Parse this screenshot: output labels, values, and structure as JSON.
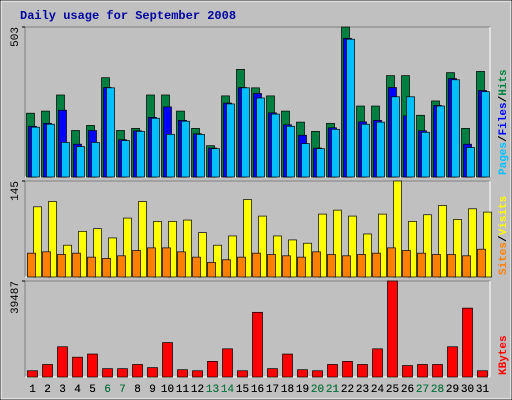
{
  "chart_data": [
    {
      "type": "bar",
      "title": "Daily usage for September 2008",
      "categories": [
        "1",
        "2",
        "3",
        "4",
        "5",
        "6",
        "7",
        "8",
        "9",
        "10",
        "11",
        "12",
        "13",
        "14",
        "15",
        "16",
        "17",
        "18",
        "19",
        "20",
        "21",
        "22",
        "23",
        "24",
        "25",
        "26",
        "27",
        "28",
        "29",
        "30",
        "31"
      ],
      "ylim": [
        0,
        503
      ],
      "yticks": [
        503
      ],
      "legend_separator": "/",
      "series": [
        {
          "name": "Hits",
          "color": "#008040",
          "values": [
            214,
            221,
            275,
            156,
            173,
            333,
            156,
            163,
            275,
            275,
            221,
            163,
            105,
            272,
            361,
            299,
            272,
            221,
            184,
            153,
            180,
            503,
            238,
            238,
            340,
            340,
            207,
            255,
            350,
            163,
            354
          ]
        },
        {
          "name": "Files",
          "color": "#0000ff",
          "values": [
            170,
            180,
            224,
            110,
            156,
            300,
            125,
            155,
            200,
            235,
            190,
            145,
            97,
            248,
            300,
            280,
            215,
            175,
            140,
            97,
            165,
            465,
            185,
            190,
            300,
            205,
            155,
            240,
            330,
            110,
            290
          ]
        },
        {
          "name": "Pages",
          "color": "#00c0ff",
          "values": [
            167,
            177,
            116,
            102,
            116,
            299,
            122,
            153,
            197,
            143,
            187,
            143,
            95,
            245,
            299,
            265,
            211,
            170,
            112,
            95,
            160,
            462,
            177,
            184,
            269,
            269,
            150,
            238,
            326,
            99,
            286
          ]
        }
      ]
    },
    {
      "type": "bar",
      "ylim": [
        0,
        145
      ],
      "yticks": [
        145
      ],
      "legend_separator": "/",
      "series": [
        {
          "name": "Visits",
          "color": "#ffff00",
          "values": [
            106,
            114,
            48,
            69,
            73,
            59,
            89,
            114,
            84,
            84,
            86,
            67,
            48,
            62,
            117,
            92,
            62,
            56,
            51,
            95,
            101,
            92,
            65,
            95,
            145,
            84,
            94,
            108,
            87,
            103,
            98
          ]
        },
        {
          "name": "Sites",
          "color": "#ff8000",
          "values": [
            36,
            38,
            34,
            36,
            30,
            28,
            32,
            40,
            44,
            44,
            38,
            30,
            22,
            26,
            30,
            36,
            34,
            32,
            30,
            38,
            34,
            32,
            34,
            36,
            44,
            40,
            36,
            34,
            34,
            32,
            42
          ]
        }
      ]
    },
    {
      "type": "bar",
      "ylim": [
        0,
        39487
      ],
      "yticks": [
        39487
      ],
      "categories": [
        "1",
        "2",
        "3",
        "4",
        "5",
        "6",
        "7",
        "8",
        "9",
        "10",
        "11",
        "12",
        "13",
        "14",
        "15",
        "16",
        "17",
        "18",
        "19",
        "20",
        "21",
        "22",
        "23",
        "24",
        "25",
        "26",
        "27",
        "28",
        "29",
        "30",
        "31"
      ],
      "category_colors": [
        "#000000",
        "#000000",
        "#000000",
        "#000000",
        "#000000",
        "#008040",
        "#008040",
        "#000000",
        "#000000",
        "#000000",
        "#000000",
        "#000000",
        "#008040",
        "#008040",
        "#000000",
        "#000000",
        "#000000",
        "#000000",
        "#000000",
        "#008040",
        "#008040",
        "#000000",
        "#000000",
        "#000000",
        "#000000",
        "#000000",
        "#008040",
        "#008040",
        "#000000",
        "#000000",
        "#000000"
      ],
      "series": [
        {
          "name": "KBytes",
          "color": "#ff0000",
          "values": [
            2575,
            5150,
            12447,
            8156,
            9443,
            3434,
            3434,
            5150,
            3863,
            14164,
            3004,
            2575,
            6438,
            11589,
            2575,
            26610,
            3434,
            9443,
            3004,
            2575,
            5150,
            6438,
            5150,
            11589,
            39487,
            4721,
            5150,
            5150,
            12447,
            28327,
            2575
          ]
        }
      ]
    }
  ]
}
